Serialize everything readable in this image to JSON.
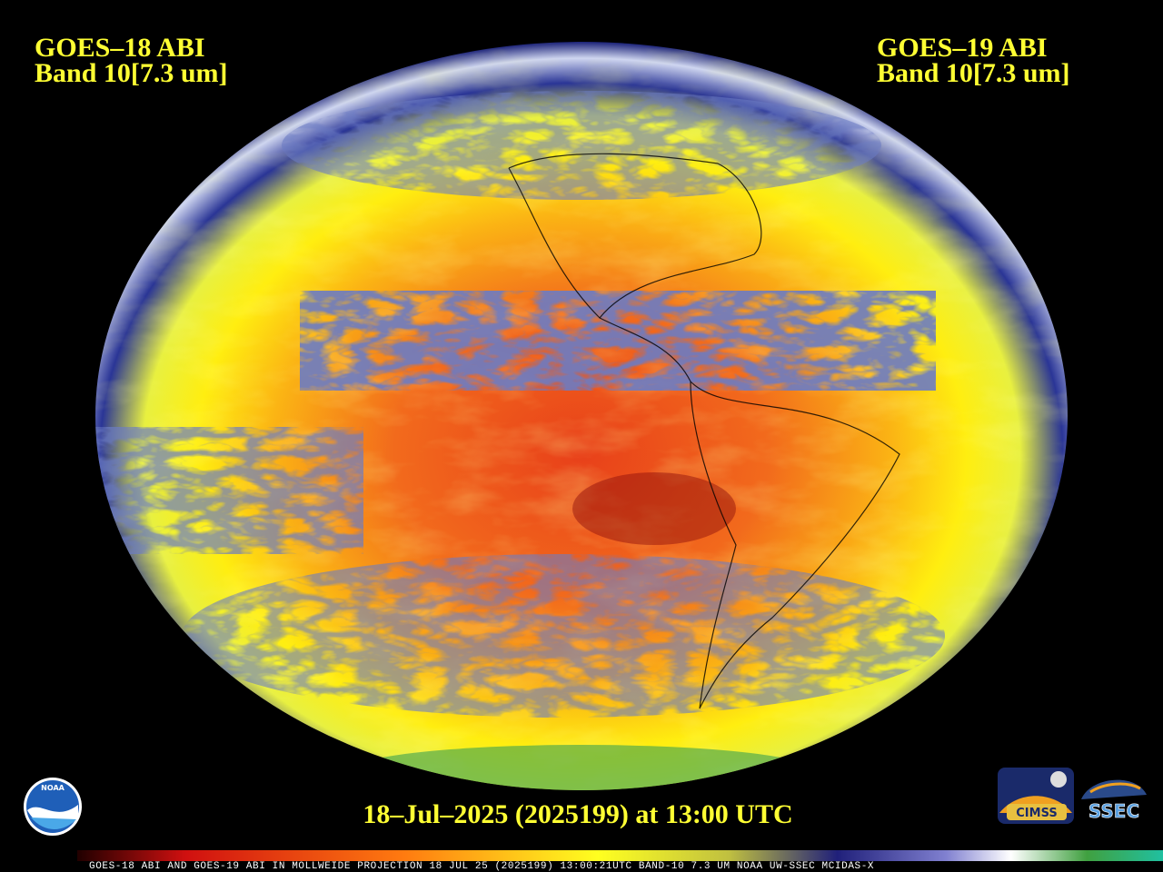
{
  "header": {
    "left": {
      "line1": "GOES–18 ABI",
      "line2": "Band 10[7.3 um]"
    },
    "right": {
      "line1": "GOES–19 ABI",
      "line2": "Band 10[7.3 um]"
    }
  },
  "timestamp": "18–Jul–2025 (2025199) at 13:00 UTC",
  "caption": "GOES-18 ABI AND GOES-19 ABI IN MOLLWEIDE PROJECTION 18 JUL 25 (2025199) 13:00:21UTC BAND-10 7.3 UM NOAA UW-SSEC MCIDAS-X",
  "logos": {
    "noaa": "NOAA",
    "cimss": "CIMSS",
    "ssec": "SSEC"
  }
}
